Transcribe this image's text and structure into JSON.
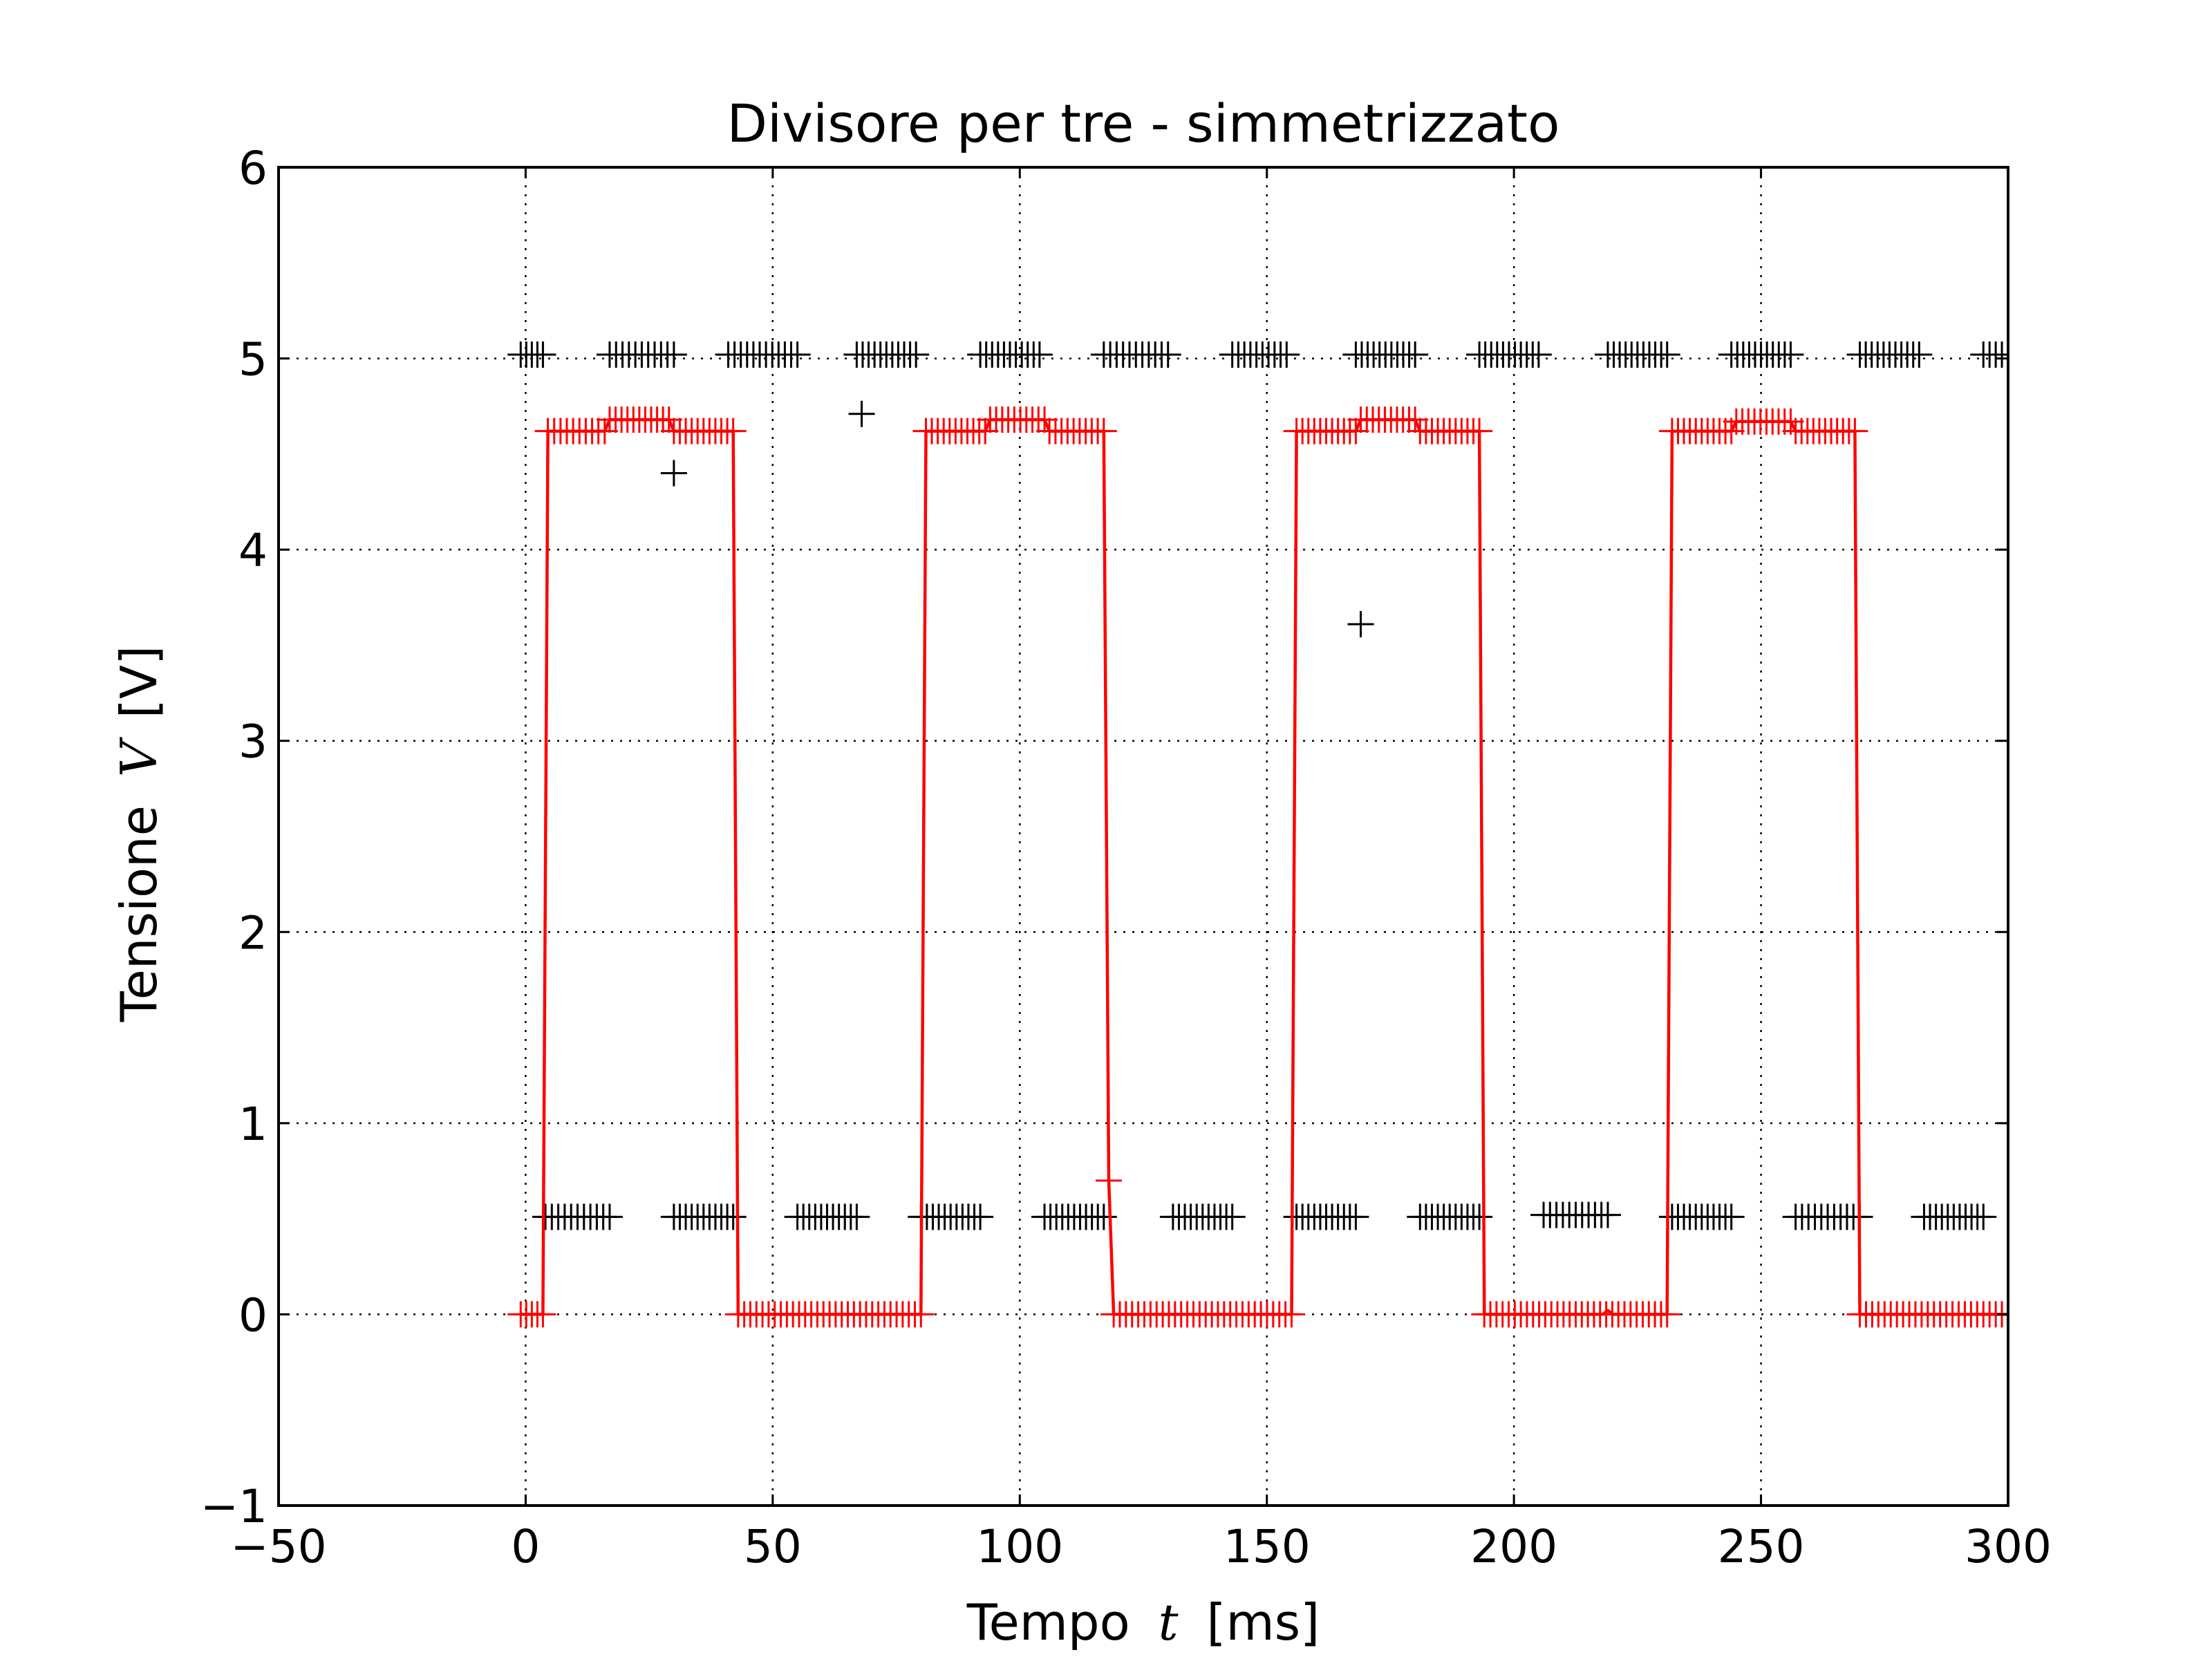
{
  "chart_data": {
    "type": "scatter",
    "title": "Divisore per tre - simmetrizzato",
    "xlabel_text": "Tempo",
    "xlabel_var": "t",
    "xlabel_unit": "[ms]",
    "ylabel_text": "Tensione",
    "ylabel_var": "V",
    "ylabel_unit": "[V]",
    "xlim": [
      -50,
      300
    ],
    "ylim": [
      -1,
      6
    ],
    "xticks": [
      -50,
      0,
      50,
      100,
      150,
      200,
      250,
      300
    ],
    "yticks": [
      -1,
      0,
      1,
      2,
      3,
      4,
      5,
      6
    ],
    "xtick_labels": [
      "−50",
      "0",
      "50",
      "100",
      "150",
      "200",
      "250",
      "300"
    ],
    "ytick_labels": [
      "−1",
      "0",
      "1",
      "2",
      "3",
      "4",
      "5",
      "6"
    ],
    "grid": true,
    "series": [
      {
        "color": "#000000",
        "style": "markers",
        "marker": "plus",
        "segments": [
          {
            "x0": -1,
            "x1": 3.5,
            "y": 5.02
          },
          {
            "x0": 17,
            "x1": 30,
            "y": 5.02
          },
          {
            "x0": 41,
            "x1": 55,
            "y": 5.02
          },
          {
            "x0": 67,
            "x1": 79,
            "y": 5.02
          },
          {
            "x0": 92,
            "x1": 104,
            "y": 5.02
          },
          {
            "x0": 117,
            "x1": 130,
            "y": 5.02
          },
          {
            "x0": 143,
            "x1": 154,
            "y": 5.02
          },
          {
            "x0": 168,
            "x1": 180,
            "y": 5.02
          },
          {
            "x0": 193,
            "x1": 205,
            "y": 5.02
          },
          {
            "x0": 219,
            "x1": 231,
            "y": 5.02
          },
          {
            "x0": 244,
            "x1": 256,
            "y": 5.02
          },
          {
            "x0": 270,
            "x1": 282,
            "y": 5.02
          },
          {
            "x0": 295,
            "x1": 300,
            "y": 5.02
          },
          {
            "x0": 4,
            "x1": 17,
            "y": 0.51
          },
          {
            "x0": 30,
            "x1": 42,
            "y": 0.51
          },
          {
            "x0": 55,
            "x1": 67,
            "y": 0.51
          },
          {
            "x0": 80,
            "x1": 92,
            "y": 0.51
          },
          {
            "x0": 105,
            "x1": 117,
            "y": 0.51
          },
          {
            "x0": 131,
            "x1": 143,
            "y": 0.51
          },
          {
            "x0": 156,
            "x1": 168,
            "y": 0.51
          },
          {
            "x0": 181,
            "x1": 193,
            "y": 0.51
          },
          {
            "x0": 206,
            "x1": 219,
            "y": 0.52
          },
          {
            "x0": 232,
            "x1": 244,
            "y": 0.51
          },
          {
            "x0": 257,
            "x1": 270,
            "y": 0.51
          },
          {
            "x0": 283,
            "x1": 295,
            "y": 0.51
          }
        ],
        "points": [
          [
            30,
            4.4
          ],
          [
            68,
            4.71
          ],
          [
            169,
            3.61
          ]
        ]
      },
      {
        "color": "#ff0000",
        "style": "line+markers",
        "marker": "plus",
        "line": [
          [
            -1,
            0
          ],
          [
            3.5,
            0
          ],
          [
            4.5,
            4.62
          ],
          [
            16,
            4.62
          ],
          [
            17,
            4.68
          ],
          [
            29,
            4.68
          ],
          [
            30,
            4.62
          ],
          [
            42,
            4.62
          ],
          [
            43,
            0
          ],
          [
            80,
            0
          ],
          [
            81,
            4.62
          ],
          [
            93,
            4.62
          ],
          [
            94,
            4.68
          ],
          [
            105,
            4.68
          ],
          [
            106,
            4.62
          ],
          [
            117,
            4.62
          ],
          [
            118,
            0.7
          ],
          [
            119,
            0
          ],
          [
            155,
            0
          ],
          [
            156,
            4.62
          ],
          [
            168,
            4.62
          ],
          [
            169,
            4.68
          ],
          [
            180,
            4.68
          ],
          [
            181,
            4.62
          ],
          [
            193,
            4.62
          ],
          [
            194,
            0
          ],
          [
            218,
            0
          ],
          [
            219,
            0.02
          ],
          [
            220,
            0
          ],
          [
            231,
            0
          ],
          [
            232,
            4.62
          ],
          [
            244,
            4.62
          ],
          [
            245,
            4.67
          ],
          [
            256,
            4.67
          ],
          [
            257,
            4.62
          ],
          [
            269,
            4.62
          ],
          [
            270,
            0
          ],
          [
            300,
            0
          ]
        ],
        "segments": [
          {
            "x0": -1,
            "x1": 3.5,
            "y": 0
          },
          {
            "x0": 4.5,
            "x1": 16,
            "y": 4.62
          },
          {
            "x0": 17,
            "x1": 29,
            "y": 4.68
          },
          {
            "x0": 30,
            "x1": 42,
            "y": 4.62
          },
          {
            "x0": 43,
            "x1": 80,
            "y": 0
          },
          {
            "x0": 81,
            "x1": 93,
            "y": 4.62
          },
          {
            "x0": 94,
            "x1": 105,
            "y": 4.68
          },
          {
            "x0": 106,
            "x1": 117,
            "y": 4.62
          },
          {
            "x0": 119,
            "x1": 155,
            "y": 0
          },
          {
            "x0": 156,
            "x1": 168,
            "y": 4.62
          },
          {
            "x0": 169,
            "x1": 180,
            "y": 4.68
          },
          {
            "x0": 181,
            "x1": 193,
            "y": 4.62
          },
          {
            "x0": 194,
            "x1": 231,
            "y": 0
          },
          {
            "x0": 232,
            "x1": 244,
            "y": 4.62
          },
          {
            "x0": 245,
            "x1": 256,
            "y": 4.67
          },
          {
            "x0": 257,
            "x1": 269,
            "y": 4.62
          },
          {
            "x0": 270,
            "x1": 300,
            "y": 0
          }
        ],
        "points": [
          [
            118,
            0.7
          ]
        ]
      }
    ]
  }
}
